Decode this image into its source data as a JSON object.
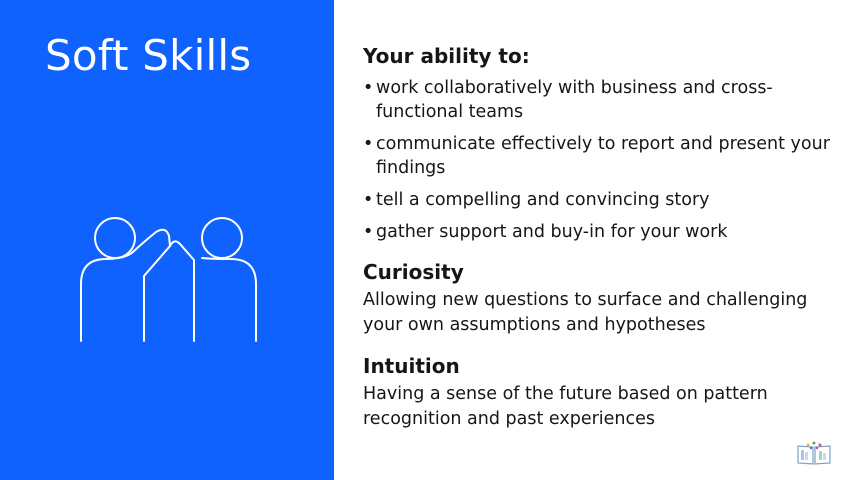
{
  "title": "Soft Skills",
  "ability": {
    "heading": "Your ability to:",
    "bullet_symbol": "•",
    "items": [
      "work collaboratively with business and cross-functional teams",
      "communicate effectively to report and present your findings",
      "tell a compelling and convincing story",
      "gather support and buy-in for your work"
    ]
  },
  "curiosity": {
    "heading": "Curiosity",
    "text": "Allowing new questions to surface and challenging your own assumptions and hypotheses"
  },
  "intuition": {
    "heading": "Intuition",
    "text": "Having a sense of the future based on pattern recognition and past experiences"
  },
  "icons": {
    "illustration": "high-five-people-icon",
    "logo": "book-logo-icon"
  },
  "colors": {
    "panel_blue": "#0f62fe",
    "text": "#161616",
    "white": "#ffffff"
  }
}
